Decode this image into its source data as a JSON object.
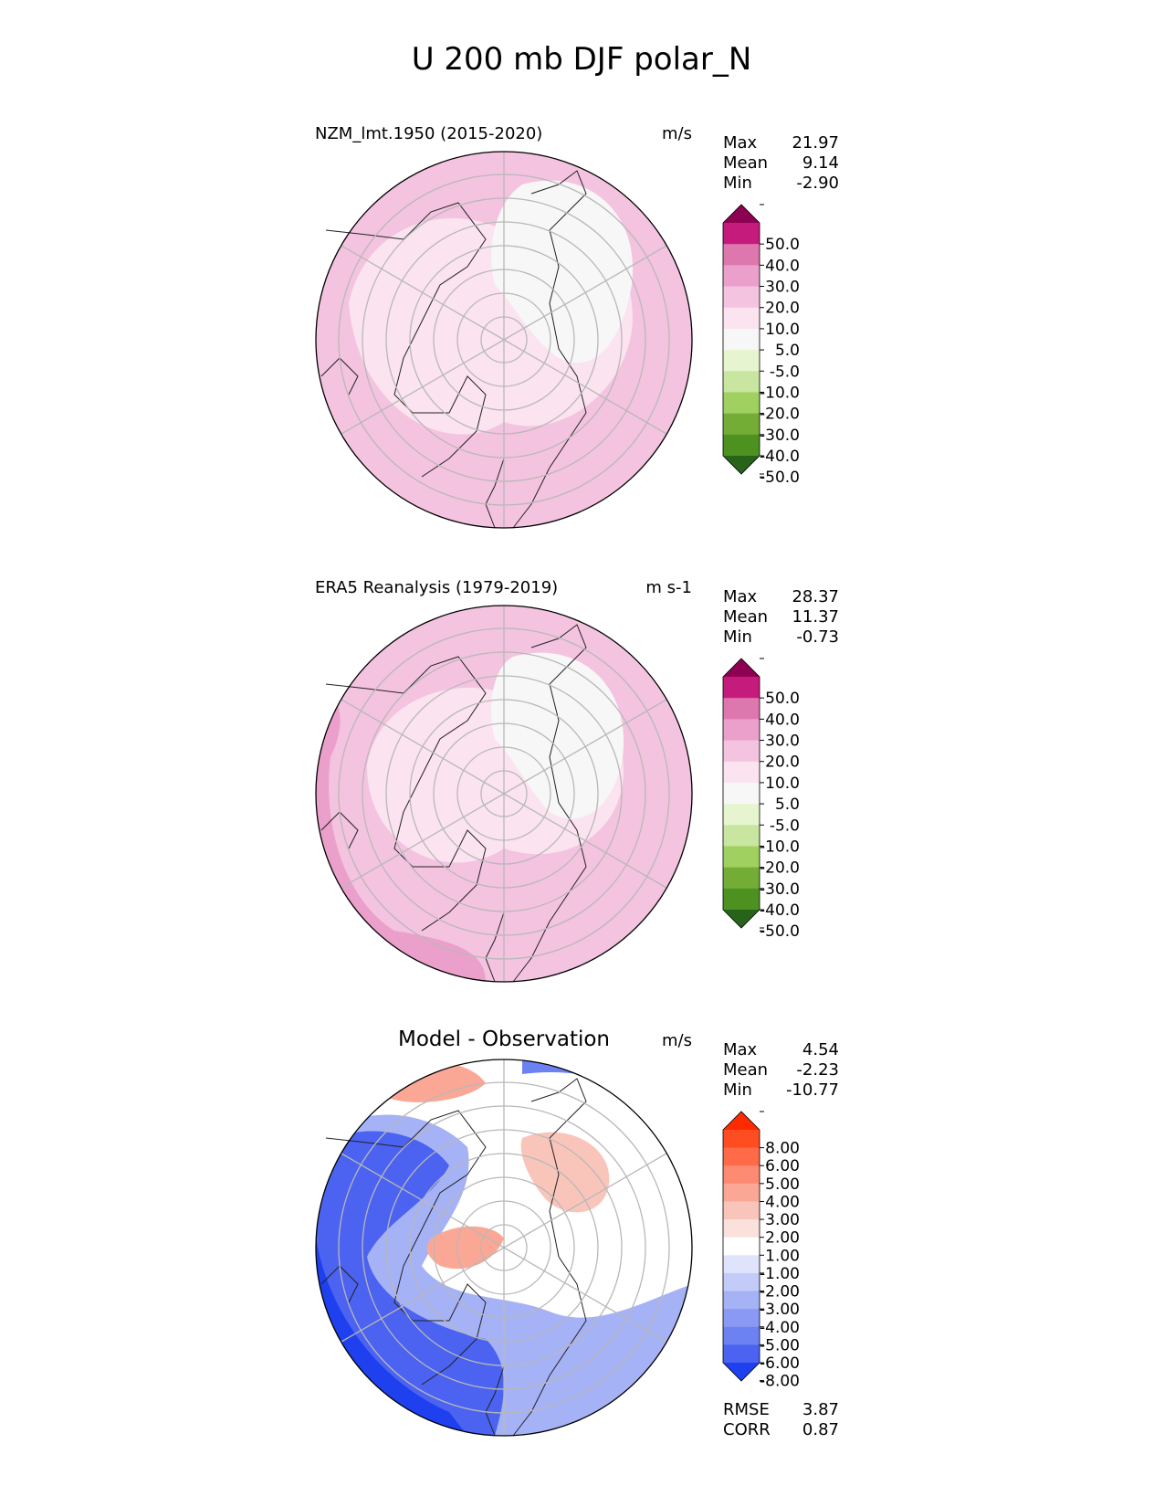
{
  "figure": {
    "title": "U 200 mb DJF polar_N"
  },
  "chart_data": [
    {
      "type": "heatmap",
      "projection": "north-polar-stereographic",
      "title": "NZM_lmt.1950 (2015-2020)",
      "units": "m/s",
      "stats": [
        {
          "label": "Max",
          "value": "21.97"
        },
        {
          "label": "Mean",
          "value": "9.14"
        },
        {
          "label": "Min",
          "value": "-2.90"
        }
      ],
      "colorbar": {
        "levels": [
          "50.0",
          "40.0",
          "30.0",
          "20.0",
          "10.0",
          "5.0",
          "-5.0",
          "-10.0",
          "-20.0",
          "-30.0",
          "-40.0",
          "-50.0"
        ],
        "colors": [
          "#8e0152",
          "#c51b7d",
          "#de77ae",
          "#eaa0cb",
          "#f4c3e0",
          "#fbe3f0",
          "#f7f7f7",
          "#e6f5d0",
          "#c8e6a0",
          "#a0d060",
          "#74ad35",
          "#4d9221",
          "#276419"
        ],
        "extend": "both"
      }
    },
    {
      "type": "heatmap",
      "projection": "north-polar-stereographic",
      "title": "ERA5 Reanalysis (1979-2019)",
      "units": "m s-1",
      "stats": [
        {
          "label": "Max",
          "value": "28.37"
        },
        {
          "label": "Mean",
          "value": "11.37"
        },
        {
          "label": "Min",
          "value": "-0.73"
        }
      ],
      "colorbar": {
        "levels": [
          "50.0",
          "40.0",
          "30.0",
          "20.0",
          "10.0",
          "5.0",
          "-5.0",
          "-10.0",
          "-20.0",
          "-30.0",
          "-40.0",
          "-50.0"
        ],
        "colors": [
          "#8e0152",
          "#c51b7d",
          "#de77ae",
          "#eaa0cb",
          "#f4c3e0",
          "#fbe3f0",
          "#f7f7f7",
          "#e6f5d0",
          "#c8e6a0",
          "#a0d060",
          "#74ad35",
          "#4d9221",
          "#276419"
        ],
        "extend": "both"
      }
    },
    {
      "type": "heatmap",
      "projection": "north-polar-stereographic",
      "title": "Model - Observation",
      "units": "m/s",
      "stats": [
        {
          "label": "Max",
          "value": "4.54"
        },
        {
          "label": "Mean",
          "value": "-2.23"
        },
        {
          "label": "Min",
          "value": "-10.77"
        }
      ],
      "metrics": [
        {
          "label": "RMSE",
          "value": "3.87"
        },
        {
          "label": "CORR",
          "value": "0.87"
        }
      ],
      "colorbar": {
        "levels": [
          "8.00",
          "6.00",
          "5.00",
          "4.00",
          "3.00",
          "2.00",
          "1.00",
          "-1.00",
          "-2.00",
          "-3.00",
          "-4.00",
          "-5.00",
          "-6.00",
          "-8.00"
        ],
        "colors": [
          "#ff2a00",
          "#ff4d22",
          "#ff6a48",
          "#fd8a72",
          "#fba796",
          "#f9c5ba",
          "#fae1dc",
          "#ffffff",
          "#dfe3fb",
          "#c3cbf8",
          "#a6b2f6",
          "#8a9af4",
          "#6d82f2",
          "#4b63f0",
          "#1e40ee"
        ],
        "extend": "both"
      }
    }
  ]
}
